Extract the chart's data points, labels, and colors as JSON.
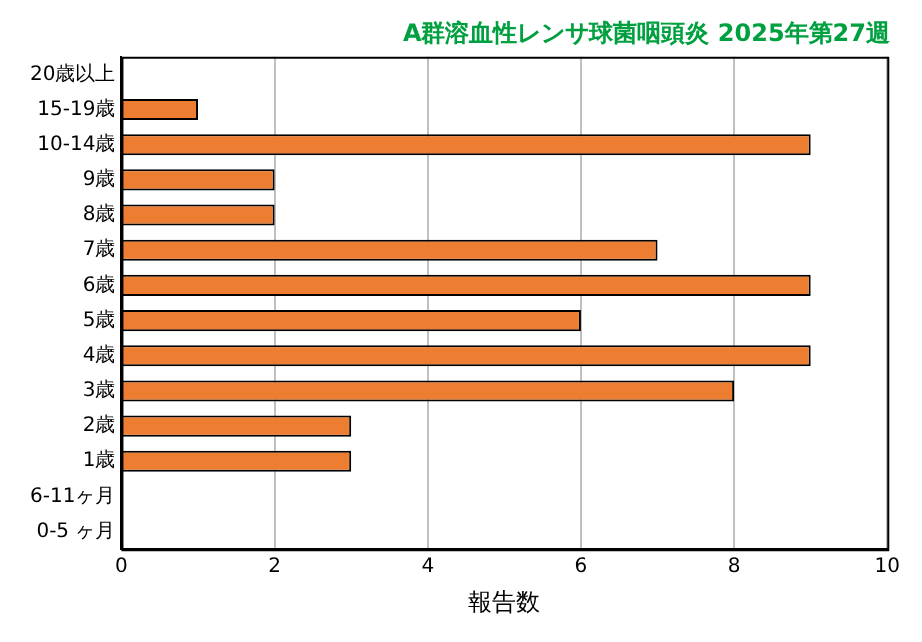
{
  "chart_data": {
    "type": "bar",
    "orientation": "horizontal",
    "title": "A群溶血性レンサ球菌咽頭炎 2025年第27週",
    "xlabel": "報告数",
    "categories": [
      "20歳以上",
      "15-19歳",
      "10-14歳",
      "9歳",
      "8歳",
      "7歳",
      "6歳",
      "5歳",
      "4歳",
      "3歳",
      "2歳",
      "1歳",
      "6-11ヶ月",
      "0-5 ヶ月"
    ],
    "values": [
      0,
      1,
      9,
      2,
      2,
      7,
      9,
      6,
      9,
      8,
      3,
      3,
      0,
      0
    ],
    "color": "#ed7d31",
    "xlim": [
      0,
      10
    ],
    "xticks": [
      0,
      2,
      4,
      6,
      8,
      10
    ],
    "grid": "x",
    "legend": false
  }
}
